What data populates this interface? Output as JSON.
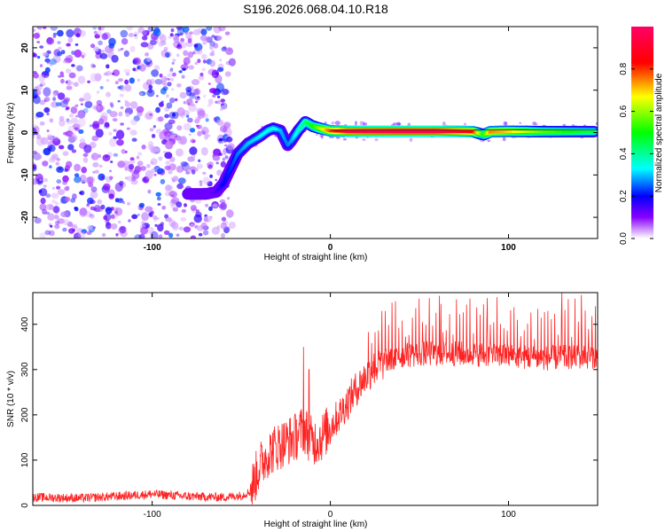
{
  "title": "S196.2026.068.04.10.R18",
  "chart_data": [
    {
      "type": "heatmap",
      "name": "spectrogram",
      "xlabel": "Height of straight line (km)",
      "ylabel": "Frequency (Hz)",
      "xlim": [
        -167,
        150
      ],
      "ylim": [
        -25,
        25
      ],
      "x_ticks": [
        -100,
        0,
        100
      ],
      "y_ticks": [
        -20,
        -10,
        0,
        10,
        20
      ],
      "noise_region_x": [
        -167,
        -55
      ],
      "ridge": {
        "x": [
          -80,
          -70,
          -64,
          -60,
          -56,
          -52,
          -46,
          -40,
          -35,
          -32,
          -28,
          -24,
          -22,
          -18,
          -14,
          -10,
          -6,
          0,
          10,
          20,
          40,
          60,
          70,
          80,
          86,
          90,
          100,
          120,
          148
        ],
        "freq": [
          -14.5,
          -14.5,
          -14,
          -12,
          -8.5,
          -5,
          -2.5,
          -1,
          0.5,
          1,
          0.5,
          -3,
          -2,
          0.5,
          2.5,
          1.5,
          1,
          0.4,
          0.3,
          0.3,
          0.3,
          0.3,
          0.3,
          0.2,
          -0.5,
          0.2,
          0.3,
          0.2,
          0.2
        ],
        "amplitude": [
          0.08,
          0.1,
          0.14,
          0.2,
          0.22,
          0.26,
          0.3,
          0.32,
          0.34,
          0.36,
          0.3,
          0.26,
          0.28,
          0.36,
          0.42,
          0.5,
          0.6,
          0.78,
          0.92,
          0.95,
          0.97,
          0.97,
          0.9,
          0.85,
          0.5,
          0.75,
          0.7,
          0.55,
          0.45
        ]
      }
    },
    {
      "type": "colorbar",
      "name": "colorbar",
      "label": "Normalized spectral amplitude",
      "range": [
        0,
        1
      ],
      "ticks": [
        0.0,
        0.2,
        0.4,
        0.6,
        0.8
      ],
      "colors": [
        "#ffffff",
        "#8800ff",
        "#0000ff",
        "#00ffff",
        "#00ff00",
        "#ffff00",
        "#ff0000",
        "#ff0066"
      ]
    },
    {
      "type": "line",
      "name": "snr",
      "xlabel": "Height of straight line (km)",
      "ylabel": "SNR (10 * v/v)",
      "xlim": [
        -167,
        150
      ],
      "ylim": [
        0,
        470
      ],
      "x_ticks": [
        -100,
        0,
        100
      ],
      "y_ticks": [
        0,
        100,
        200,
        300,
        400
      ],
      "color": "#ff2222",
      "envelope": {
        "x": [
          -167,
          -140,
          -120,
          -100,
          -80,
          -60,
          -50,
          -45,
          -40,
          -35,
          -30,
          -25,
          -20,
          -15,
          -10,
          -5,
          0,
          5,
          10,
          15,
          20,
          25,
          30,
          40,
          50,
          60,
          80,
          100,
          120,
          150
        ],
        "y": [
          18,
          16,
          20,
          25,
          20,
          18,
          22,
          30,
          85,
          115,
          130,
          140,
          150,
          170,
          140,
          150,
          175,
          200,
          230,
          260,
          285,
          305,
          315,
          330,
          335,
          335,
          335,
          330,
          325,
          330
        ]
      },
      "spikes": [
        {
          "x": -15,
          "y": 350
        },
        {
          "x": -12,
          "y": 300
        },
        {
          "x": 62,
          "y": 445
        },
        {
          "x": 88,
          "y": 458
        },
        {
          "x": 130,
          "y": 470
        },
        {
          "x": 141,
          "y": 465
        }
      ]
    }
  ]
}
